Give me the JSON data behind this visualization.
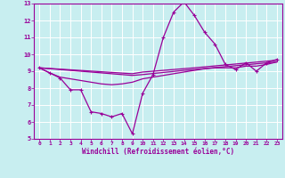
{
  "xlabel": "Windchill (Refroidissement éolien,°C)",
  "background_color": "#c8eef0",
  "grid_color": "#ffffff",
  "line_color": "#990099",
  "xlim": [
    -0.5,
    23.5
  ],
  "ylim": [
    5,
    13
  ],
  "yticks": [
    5,
    6,
    7,
    8,
    9,
    10,
    11,
    12,
    13
  ],
  "xticks": [
    0,
    1,
    2,
    3,
    4,
    5,
    6,
    7,
    8,
    9,
    10,
    11,
    12,
    13,
    14,
    15,
    16,
    17,
    18,
    19,
    20,
    21,
    22,
    23
  ],
  "line1_x": [
    0,
    1,
    2,
    3,
    4,
    5,
    6,
    7,
    8,
    9,
    10,
    11,
    12,
    13,
    14,
    15,
    16,
    17,
    18,
    19,
    20,
    21,
    22,
    23
  ],
  "line1_y": [
    9.2,
    8.9,
    8.6,
    7.9,
    7.9,
    6.6,
    6.5,
    6.3,
    6.5,
    5.3,
    7.7,
    8.8,
    11.0,
    12.5,
    13.1,
    12.3,
    11.3,
    10.6,
    9.4,
    9.1,
    9.5,
    9.0,
    9.5,
    9.7
  ],
  "line2_x": [
    0,
    1,
    2,
    3,
    4,
    5,
    6,
    7,
    8,
    9,
    10,
    11,
    12,
    13,
    14,
    15,
    16,
    17,
    18,
    19,
    20,
    21,
    22,
    23
  ],
  "line2_y": [
    9.2,
    8.9,
    8.65,
    8.55,
    8.45,
    8.35,
    8.25,
    8.2,
    8.25,
    8.35,
    8.55,
    8.65,
    8.75,
    8.85,
    8.95,
    9.05,
    9.15,
    9.2,
    9.2,
    9.2,
    9.3,
    9.3,
    9.4,
    9.55
  ],
  "line3_x": [
    0,
    9,
    10,
    14,
    15,
    23
  ],
  "line3_y": [
    9.2,
    8.75,
    8.8,
    9.05,
    9.1,
    9.55
  ],
  "line4_x": [
    0,
    9,
    10,
    14,
    15,
    23
  ],
  "line4_y": [
    9.2,
    8.85,
    8.95,
    9.15,
    9.2,
    9.65
  ]
}
